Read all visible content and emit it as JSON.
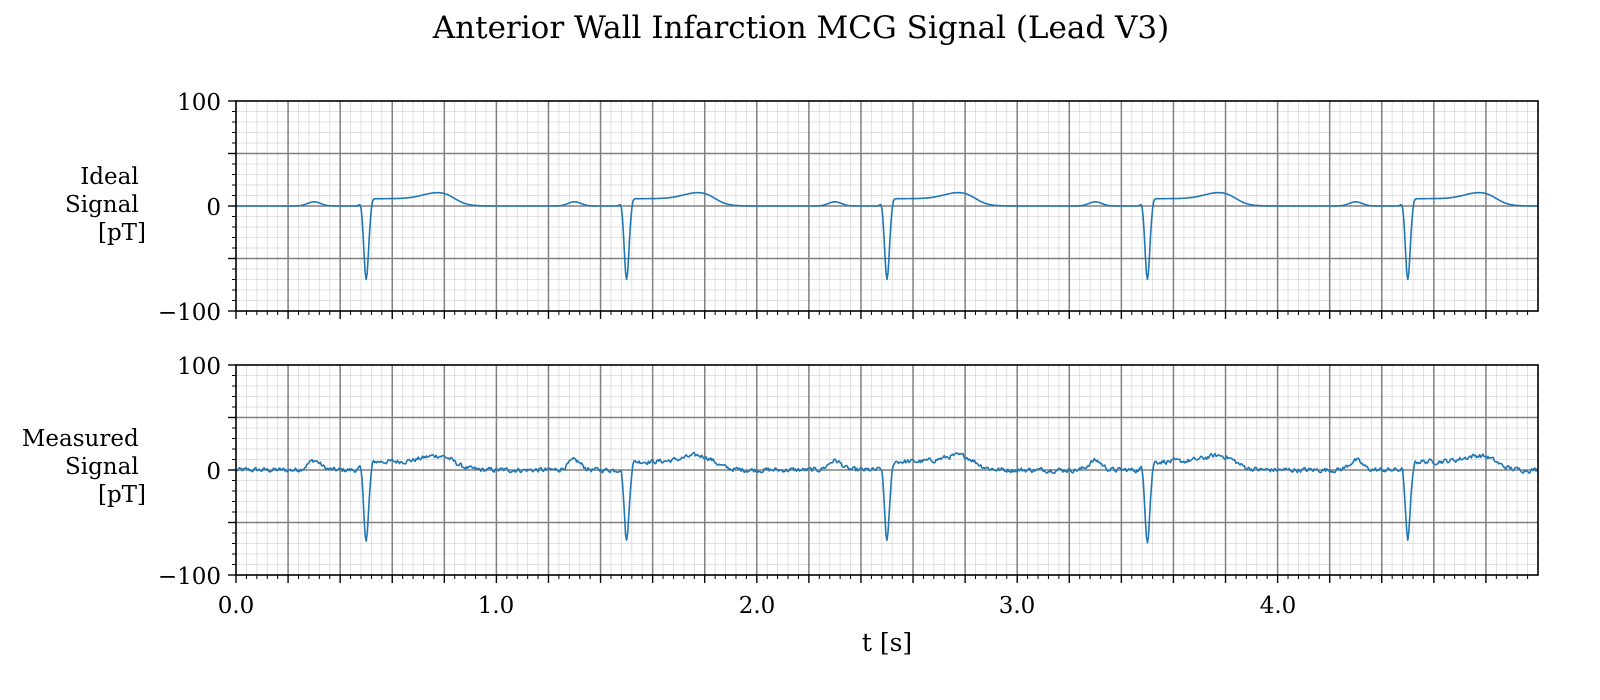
{
  "chart_data": {
    "type": "line",
    "title": "Anterior Wall Infarction MCG Signal (Lead V3)",
    "xlabel": "t [s]",
    "x_range": [
      0.0,
      5.0
    ],
    "x_tick_labels": [
      "0.0",
      "1.0",
      "2.0",
      "3.0",
      "4.0"
    ],
    "x_tick_values": [
      0.0,
      1.0,
      2.0,
      3.0,
      4.0
    ],
    "grid": true,
    "line_color": "#1f77b4",
    "panels": [
      {
        "id": "ideal",
        "ylabel": [
          "Ideal",
          "Signal",
          "[pT]"
        ],
        "ylim": [
          -100,
          100
        ],
        "y_tick_labels": [
          "100",
          "0",
          "−100"
        ],
        "y_tick_values": [
          100,
          0,
          -100
        ],
        "series": {
          "beat_times_s": [
            0.5,
            1.5,
            2.5,
            3.5,
            4.5
          ],
          "p_wave": {
            "offset_s": -0.2,
            "amplitude_pT": 4
          },
          "q_wave": {
            "offset_s": -0.02,
            "amplitude_pT": 4
          },
          "qs_trough": {
            "offset_s": 0.0,
            "amplitude_pT": -70
          },
          "st_level_pT": 7,
          "t_wave": {
            "offset_s": 0.28,
            "amplitude_pT": 13
          },
          "noise_pT": 0
        }
      },
      {
        "id": "measured",
        "ylabel": [
          "Measured",
          "Signal",
          "[pT]"
        ],
        "ylim": [
          -100,
          100
        ],
        "y_tick_labels": [
          "100",
          "0",
          "−100"
        ],
        "y_tick_values": [
          100,
          0,
          -100
        ],
        "series": {
          "beat_times_s": [
            0.5,
            1.5,
            2.5,
            3.5,
            4.5
          ],
          "p_wave": {
            "offset_s": -0.2,
            "amplitude_pT": 9
          },
          "q_wave": {
            "offset_s": -0.02,
            "amplitude_pT": 4
          },
          "qs_trough": {
            "offset_s": 0.0,
            "amplitude_pT": -67
          },
          "st_level_pT": 8,
          "t_wave": {
            "offset_s": 0.28,
            "amplitude_pT": 14
          },
          "noise_pT": 2.5
        }
      }
    ]
  }
}
